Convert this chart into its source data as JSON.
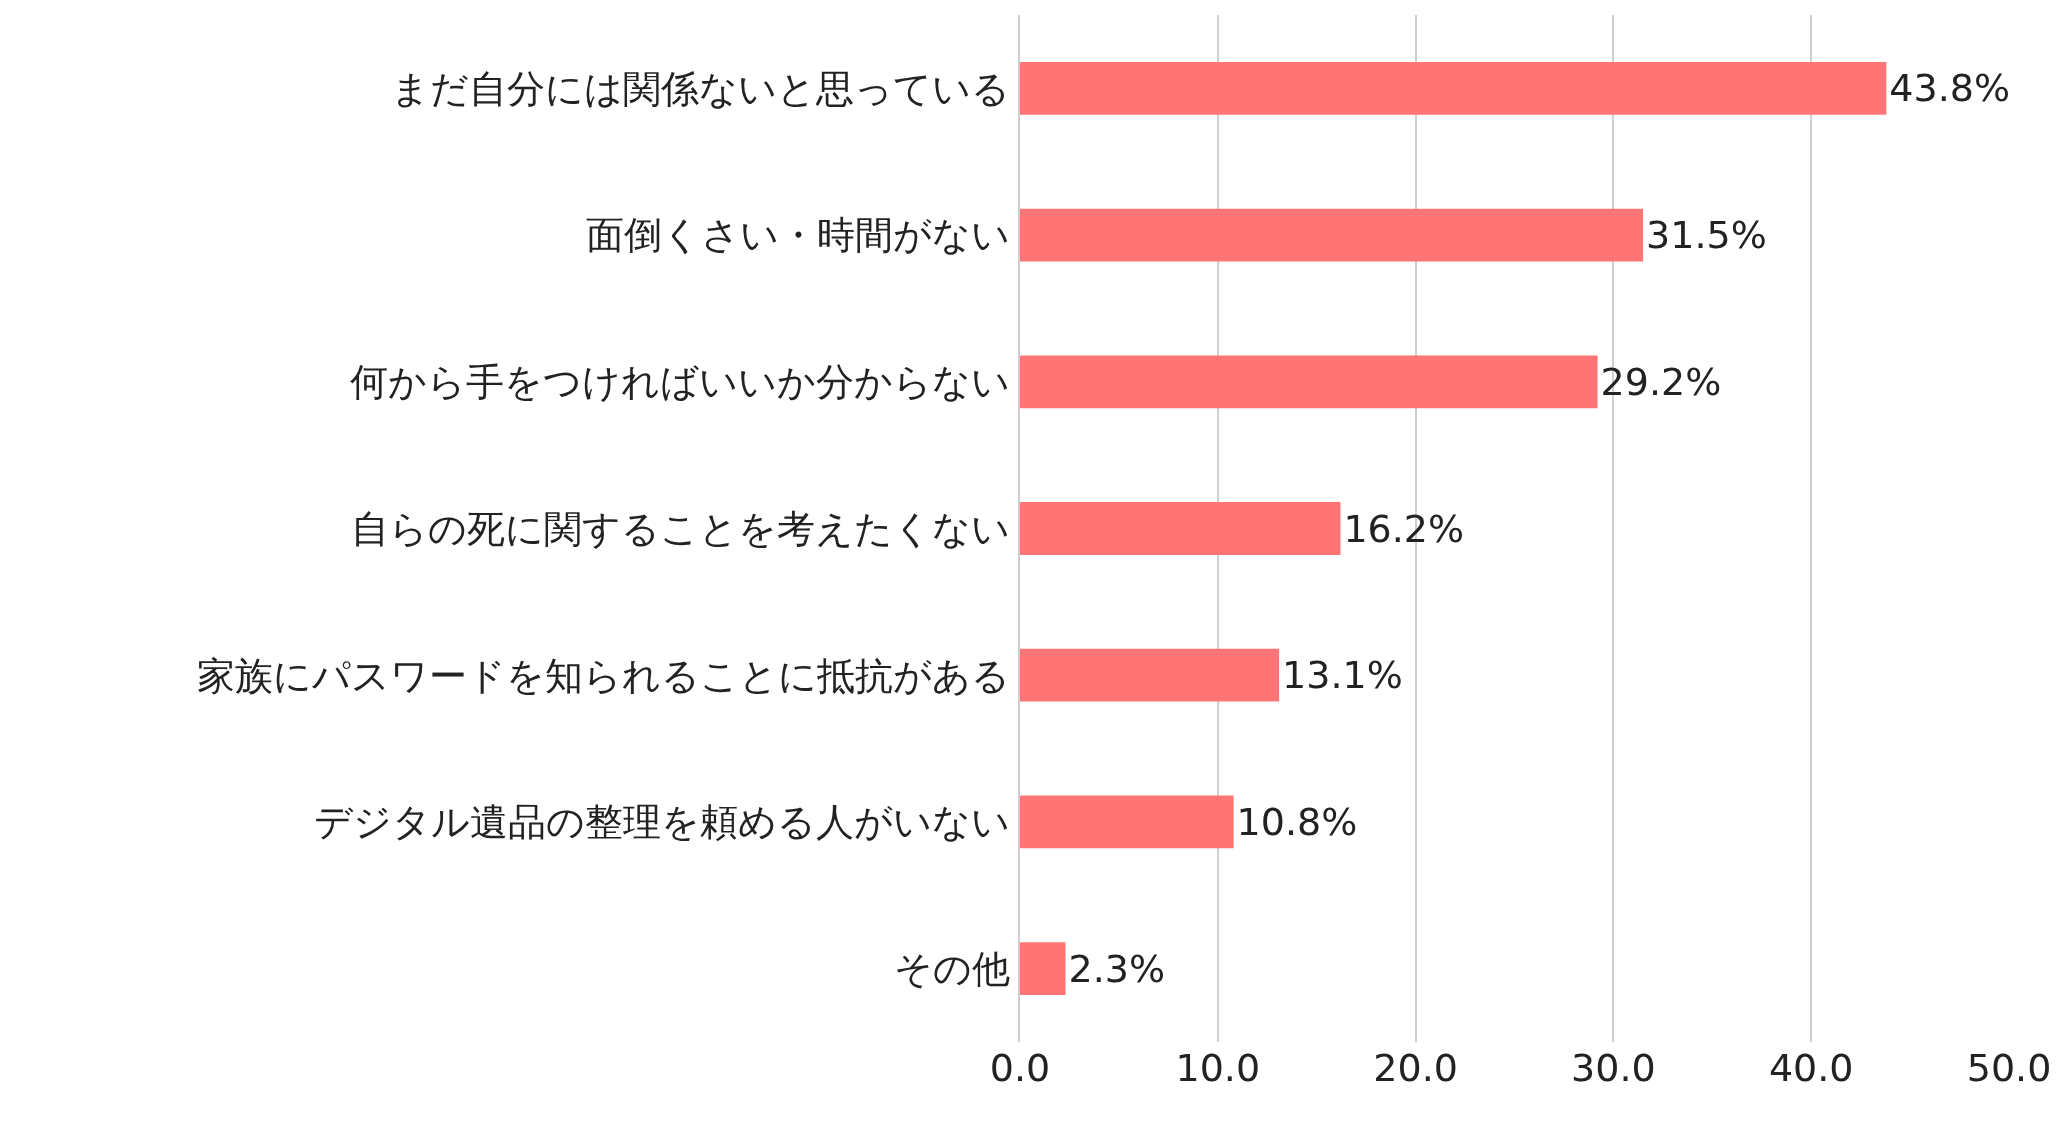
{
  "chart_data": {
    "type": "bar",
    "orientation": "horizontal",
    "categories": [
      "まだ自分には関係ないと思っている",
      "面倒くさい・時間がない",
      "何から手をつければいいか分からない",
      "自らの死に関することを考えたくない",
      "家族にパスワードを知られることに抵抗がある",
      "デジタル遺品の整理を頼める人がいない",
      "その他"
    ],
    "values": [
      43.8,
      31.5,
      29.2,
      16.2,
      13.1,
      10.8,
      2.3
    ],
    "value_labels": [
      "43.8%",
      "31.5%",
      "29.2%",
      "16.2%",
      "13.1%",
      "10.8%",
      "2.3%"
    ],
    "color": "#ff7575",
    "xlim": [
      0,
      50
    ],
    "xticks": [
      {
        "value": 0,
        "label": "0.0"
      },
      {
        "value": 10,
        "label": "10.0"
      },
      {
        "value": 20,
        "label": "20.0"
      },
      {
        "value": 30,
        "label": "30.0"
      },
      {
        "value": 40,
        "label": "40.0"
      },
      {
        "value": 50,
        "label": "50.0"
      }
    ],
    "grid": "x"
  }
}
